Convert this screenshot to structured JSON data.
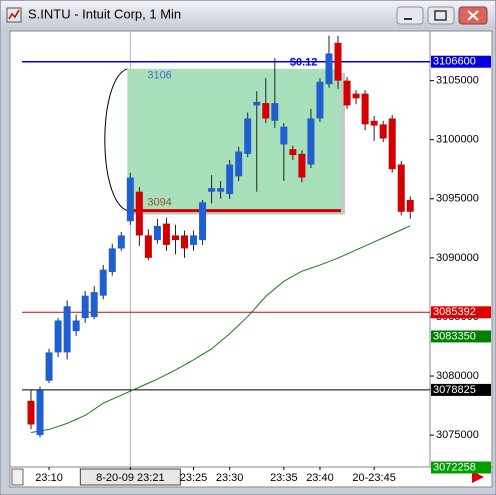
{
  "window": {
    "title": "S.INTU - Intuit Corp, 1 Min"
  },
  "chart_data": {
    "type": "candlestick",
    "categories": [
      null,
      null,
      "23:10",
      null,
      null,
      null,
      null,
      null,
      null,
      null,
      null,
      "8-20-09 23:21",
      null,
      null,
      null,
      null,
      null,
      null,
      "23:25",
      null,
      null,
      null,
      "23:30",
      null,
      null,
      null,
      null,
      null,
      "23:35",
      null,
      null,
      null,
      "23:40",
      null,
      null,
      null,
      null,
      null,
      "20-23:45",
      null,
      null,
      null,
      null
    ],
    "open": [
      3077900,
      3075000,
      3079600,
      3082000,
      3082000,
      3083800,
      3084900,
      3085000,
      3086800,
      3088800,
      3090800,
      3093100,
      3095600,
      3091900,
      3091500,
      3092900,
      3091900,
      3091900,
      3091100,
      3091500,
      3095600,
      3095600,
      3095400,
      3096900,
      3098800,
      3102900,
      3103100,
      3101600,
      3099600,
      3099200,
      3098800,
      3097900,
      3101800,
      3104700,
      3108200,
      3105000,
      3103900,
      3103900,
      3101600,
      3101300,
      3101800,
      3097900,
      3094900
    ],
    "high": [
      3078800,
      3079100,
      3082300,
      3084900,
      3086400,
      3085200,
      3087200,
      3087600,
      3089400,
      3091200,
      3092200,
      3097200,
      3096000,
      3092400,
      3093300,
      3093400,
      3092800,
      3092300,
      3092300,
      3094900,
      3097000,
      3096500,
      3098300,
      3099400,
      3102300,
      3104100,
      3105200,
      3106900,
      3101400,
      3099500,
      3099100,
      3102600,
      3105200,
      3108800,
      3108800,
      3105300,
      3104200,
      3104200,
      3102000,
      3101600,
      3102100,
      3098200,
      3095200
    ],
    "low": [
      3075500,
      3074800,
      3079400,
      3081600,
      3081400,
      3083400,
      3084500,
      3084800,
      3086500,
      3088500,
      3090600,
      3092800,
      3091000,
      3089800,
      3091200,
      3090600,
      3090300,
      3090000,
      3090600,
      3091100,
      3094600,
      3095000,
      3095000,
      3096500,
      3098500,
      3095600,
      3101400,
      3101000,
      3096500,
      3098300,
      3096400,
      3097600,
      3101500,
      3104400,
      3104300,
      3102600,
      3103000,
      3100800,
      3099900,
      3099800,
      3097200,
      3093600,
      3093300
    ],
    "close": [
      3075900,
      3078800,
      3082000,
      3084700,
      3085900,
      3084700,
      3086800,
      3087100,
      3089000,
      3090800,
      3091900,
      3096800,
      3091900,
      3090000,
      3092700,
      3091100,
      3091500,
      3090800,
      3091900,
      3094700,
      3095900,
      3095900,
      3097900,
      3099000,
      3101800,
      3103200,
      3101800,
      3103100,
      3101100,
      3098700,
      3096800,
      3101800,
      3104900,
      3107300,
      3105000,
      3102900,
      3103500,
      3101300,
      3101200,
      3100100,
      3097500,
      3093900,
      3093900
    ],
    "up_color": "#1f5fd0",
    "down_color": "#d40000",
    "moving_average": {
      "color": "#1a7a1a",
      "values": [
        3075220,
        3075350,
        3075480,
        3075735,
        3075990,
        3076330,
        3076670,
        3077185,
        3077700,
        3078040,
        3078380,
        3078720,
        3079060,
        3079400,
        3079740,
        3080125,
        3080510,
        3080940,
        3081370,
        3081835,
        3082300,
        3082940,
        3083580,
        3084305,
        3085030,
        3085885,
        3086740,
        3087380,
        3088020,
        3088445,
        3088870,
        3089130,
        3089390,
        3089685,
        3089980,
        3090325,
        3090670,
        3091010,
        3091350,
        3091690,
        3092030,
        3092370,
        3092710
      ]
    },
    "ylim": [
      3072300,
      3109200
    ],
    "yticks": [
      3075000,
      3080000,
      3085000,
      3090000,
      3095000,
      3100000,
      3105000
    ],
    "levels": [
      {
        "value": 3106600,
        "color": "#0000e0",
        "line": true
      },
      {
        "value": 3085392,
        "color": "#e00000",
        "line": true
      },
      {
        "value": 3083350,
        "color": "#008000",
        "line": false
      },
      {
        "value": 3078825,
        "color": "#000000",
        "line": true
      },
      {
        "value": 3072258,
        "color": "#00a000",
        "line": false
      }
    ],
    "crosshair": 11,
    "annotation": {
      "start": 11,
      "end": 34,
      "top": 3106000,
      "bottom": 3094000,
      "top_label": "3106",
      "bottom_label": "3094",
      "text": "$0.12"
    }
  }
}
